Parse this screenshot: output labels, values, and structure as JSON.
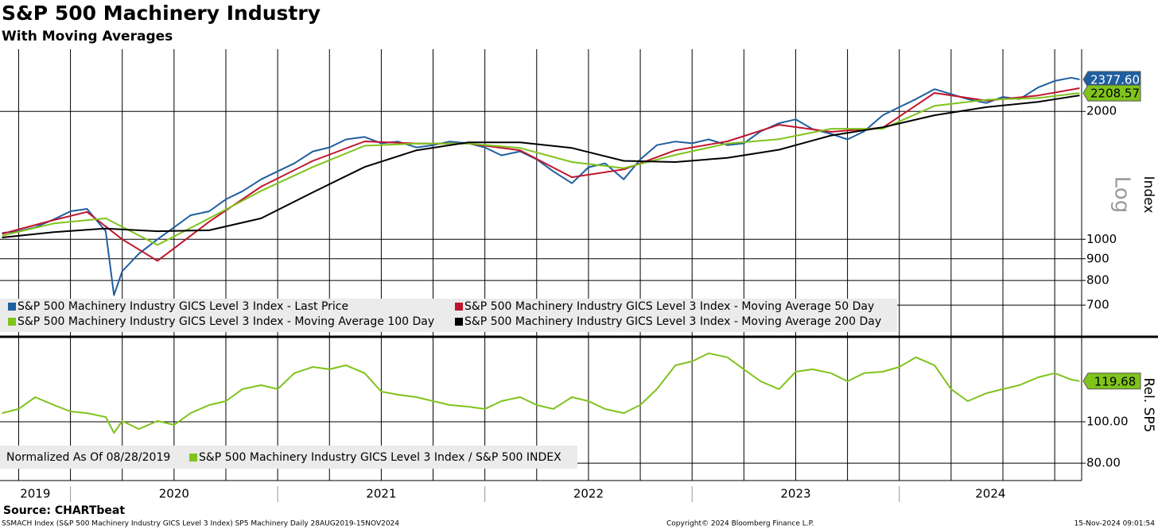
{
  "header": {
    "title": "S&P 500 Machinery Industry",
    "subtitle": "With Moving Averages"
  },
  "chart_data": [
    {
      "type": "line",
      "log_scale": true,
      "grid": true,
      "y_label": "Index",
      "scale_label": "Log",
      "xlim": [
        2019.66,
        2024.88
      ],
      "ylim": [
        600,
        2800
      ],
      "yticks": [
        700,
        800,
        900,
        1000,
        2000
      ],
      "xticks": [
        2019.75,
        2020,
        2020.25,
        2020.5,
        2020.75,
        2021,
        2021.25,
        2021.5,
        2021.75,
        2022,
        2022.25,
        2022.5,
        2022.75,
        2023,
        2023.25,
        2023.5,
        2023.75,
        2024,
        2024.25,
        2024.5,
        2024.75
      ],
      "series": [
        {
          "name": "S&P 500 Machinery Industry GICS Level 3 Index - Last Price",
          "color": "#1f5fa0",
          "x": [
            2019.67,
            2019.75,
            2019.83,
            2019.92,
            2020.0,
            2020.08,
            2020.17,
            2020.21,
            2020.25,
            2020.33,
            2020.42,
            2020.5,
            2020.58,
            2020.67,
            2020.75,
            2020.83,
            2020.92,
            2021.0,
            2021.08,
            2021.17,
            2021.25,
            2021.33,
            2021.42,
            2021.5,
            2021.58,
            2021.67,
            2021.75,
            2021.83,
            2021.92,
            2022.0,
            2022.08,
            2022.17,
            2022.25,
            2022.33,
            2022.42,
            2022.5,
            2022.58,
            2022.67,
            2022.75,
            2022.83,
            2022.92,
            2023.0,
            2023.08,
            2023.17,
            2023.25,
            2023.33,
            2023.42,
            2023.5,
            2023.58,
            2023.67,
            2023.75,
            2023.83,
            2023.92,
            2024.0,
            2024.08,
            2024.17,
            2024.25,
            2024.33,
            2024.42,
            2024.5,
            2024.58,
            2024.67,
            2024.75,
            2024.83,
            2024.87
          ],
          "values": [
            1035,
            1045,
            1067,
            1114,
            1164,
            1179,
            1045,
            739,
            841,
            925,
            1000,
            1067,
            1139,
            1164,
            1242,
            1297,
            1384,
            1445,
            1509,
            1610,
            1645,
            1718,
            1741,
            1682,
            1698,
            1645,
            1666,
            1698,
            1682,
            1645,
            1576,
            1610,
            1542,
            1445,
            1355,
            1477,
            1509,
            1384,
            1542,
            1666,
            1698,
            1682,
            1718,
            1666,
            1682,
            1794,
            1876,
            1915,
            1818,
            1771,
            1718,
            1794,
            1958,
            2046,
            2137,
            2256,
            2197,
            2137,
            2092,
            2163,
            2137,
            2277,
            2358,
            2400,
            2377.6
          ],
          "value_labels": [
            null,
            null,
            null,
            null,
            null,
            null,
            null,
            null,
            null,
            null,
            null,
            null,
            null,
            null,
            null,
            null,
            null,
            null,
            null,
            null,
            null,
            null,
            null,
            null,
            null,
            null,
            null,
            null,
            null,
            null,
            null,
            null,
            null,
            null,
            null,
            null,
            null,
            null,
            null,
            null,
            null,
            null,
            null,
            null,
            null,
            null,
            null,
            null,
            null,
            null,
            null,
            null,
            null,
            null,
            null,
            null,
            null,
            null,
            null,
            null,
            null,
            null,
            null,
            null,
            "2377.60"
          ]
        },
        {
          "name": "S&P 500 Machinery Industry GICS Level 3 Index - Moving Average 50 Day",
          "color": "#c0152f",
          "x": [
            2019.67,
            2019.92,
            2020.08,
            2020.25,
            2020.42,
            2020.67,
            2020.92,
            2021.17,
            2021.42,
            2021.67,
            2021.92,
            2022.17,
            2022.42,
            2022.67,
            2022.92,
            2023.17,
            2023.42,
            2023.67,
            2023.92,
            2024.17,
            2024.42,
            2024.67,
            2024.87
          ],
          "values": [
            1030,
            1110,
            1160,
            1000,
            890,
            1100,
            1330,
            1530,
            1700,
            1680,
            1680,
            1620,
            1400,
            1460,
            1620,
            1700,
            1860,
            1790,
            1830,
            2210,
            2120,
            2180,
            2268
          ]
        },
        {
          "name": "S&P 500 Machinery Industry GICS Level 3 Index - Moving Average 100 Day",
          "color": "#7fc31c",
          "x": [
            2019.67,
            2019.92,
            2020.17,
            2020.42,
            2020.67,
            2020.92,
            2021.17,
            2021.42,
            2021.67,
            2021.92,
            2022.17,
            2022.42,
            2022.67,
            2022.92,
            2023.17,
            2023.42,
            2023.67,
            2023.92,
            2024.17,
            2024.42,
            2024.67,
            2024.87
          ],
          "values": [
            1020,
            1090,
            1120,
            970,
            1120,
            1300,
            1480,
            1660,
            1680,
            1680,
            1640,
            1520,
            1470,
            1580,
            1680,
            1720,
            1820,
            1820,
            2060,
            2130,
            2150,
            2208.57
          ],
          "value_labels": [
            null,
            null,
            null,
            null,
            null,
            null,
            null,
            null,
            null,
            null,
            null,
            null,
            null,
            null,
            null,
            null,
            null,
            null,
            null,
            null,
            null,
            "2208.57"
          ]
        },
        {
          "name": "S&P 500 Machinery Industry GICS Level 3 Index - Moving Average 200 Day",
          "color": "#000000",
          "x": [
            2019.67,
            2019.92,
            2020.17,
            2020.42,
            2020.67,
            2020.92,
            2021.17,
            2021.42,
            2021.67,
            2021.92,
            2022.17,
            2022.42,
            2022.67,
            2022.92,
            2023.17,
            2023.42,
            2023.67,
            2023.92,
            2024.17,
            2024.42,
            2024.67,
            2024.87
          ],
          "values": [
            1010,
            1040,
            1060,
            1045,
            1050,
            1120,
            1290,
            1480,
            1620,
            1690,
            1690,
            1640,
            1530,
            1520,
            1555,
            1625,
            1755,
            1834,
            1958,
            2046,
            2106,
            2181
          ]
        }
      ]
    },
    {
      "type": "line",
      "log_scale": false,
      "grid": true,
      "y_label": "Rel. SP5",
      "note": "Normalized As Of 08/28/2019",
      "xlim": [
        2019.66,
        2024.88
      ],
      "ylim": [
        73.5,
        138.8
      ],
      "yticks": [
        {
          "value": 80,
          "label": "80.00"
        },
        {
          "value": 100,
          "label": "100.00"
        }
      ],
      "xticks": [
        2019.75,
        2020,
        2020.25,
        2020.5,
        2020.75,
        2021,
        2021.25,
        2021.5,
        2021.75,
        2022,
        2022.25,
        2022.5,
        2022.75,
        2023,
        2023.25,
        2023.5,
        2023.75,
        2024,
        2024.25,
        2024.5,
        2024.75
      ],
      "years": [
        2019,
        2020,
        2021,
        2022,
        2023,
        2024
      ],
      "series": [
        {
          "name": "S&P 500 Machinery Industry GICS Level 3 Index / S&P 500 INDEX",
          "color": "#7fc31c",
          "x": [
            2019.67,
            2019.75,
            2019.83,
            2019.92,
            2020.0,
            2020.08,
            2020.17,
            2020.21,
            2020.25,
            2020.33,
            2020.42,
            2020.5,
            2020.58,
            2020.67,
            2020.75,
            2020.83,
            2020.92,
            2021.0,
            2021.08,
            2021.17,
            2021.25,
            2021.33,
            2021.42,
            2021.5,
            2021.58,
            2021.67,
            2021.75,
            2021.83,
            2021.92,
            2022.0,
            2022.08,
            2022.17,
            2022.25,
            2022.33,
            2022.42,
            2022.5,
            2022.58,
            2022.67,
            2022.75,
            2022.83,
            2022.92,
            2023.0,
            2023.08,
            2023.17,
            2023.25,
            2023.33,
            2023.42,
            2023.5,
            2023.58,
            2023.67,
            2023.75,
            2023.83,
            2023.92,
            2024.0,
            2024.08,
            2024.17,
            2024.25,
            2024.33,
            2024.42,
            2024.5,
            2024.58,
            2024.67,
            2024.75,
            2024.83,
            2024.87
          ],
          "values": [
            104.2,
            106.2,
            111.9,
            108.1,
            105,
            104.2,
            102.3,
            94.6,
            100.4,
            96.5,
            100.4,
            98.5,
            104.2,
            108.1,
            110,
            115.8,
            117.7,
            115.8,
            123.5,
            126.5,
            125.4,
            127.3,
            123.5,
            114.6,
            113.1,
            111.9,
            110,
            108.1,
            107.3,
            106.2,
            110,
            111.9,
            108.1,
            106.2,
            111.9,
            110,
            106.2,
            104.2,
            108.1,
            115.8,
            127.3,
            129.2,
            133.1,
            131.2,
            125.4,
            119.6,
            115.8,
            124.2,
            125.4,
            123.5,
            119.6,
            123.5,
            124.2,
            126.5,
            131.2,
            127.3,
            115.8,
            110,
            113.8,
            115.8,
            117.7,
            121.5,
            123.5,
            120.4,
            119.68
          ],
          "value_labels": [
            null,
            null,
            null,
            null,
            null,
            null,
            null,
            null,
            null,
            null,
            null,
            null,
            null,
            null,
            null,
            null,
            null,
            null,
            null,
            null,
            null,
            null,
            null,
            null,
            null,
            null,
            null,
            null,
            null,
            null,
            null,
            null,
            null,
            null,
            null,
            null,
            null,
            null,
            null,
            null,
            null,
            null,
            null,
            null,
            null,
            null,
            null,
            null,
            null,
            null,
            null,
            null,
            null,
            null,
            null,
            null,
            null,
            null,
            null,
            null,
            null,
            null,
            null,
            null,
            "119.68"
          ]
        }
      ]
    }
  ],
  "footer": {
    "source": "Source: CHARTbeat",
    "ticker_info": "SSMACH Index (S&P 500 Machinery Industry GICS Level 3 Index) SP5 Machinery  Daily 28AUG2019-15NOV2024",
    "copyright": "Copyright© 2024 Bloomberg Finance L.P.",
    "timestamp": "15-Nov-2024 09:01:54"
  }
}
